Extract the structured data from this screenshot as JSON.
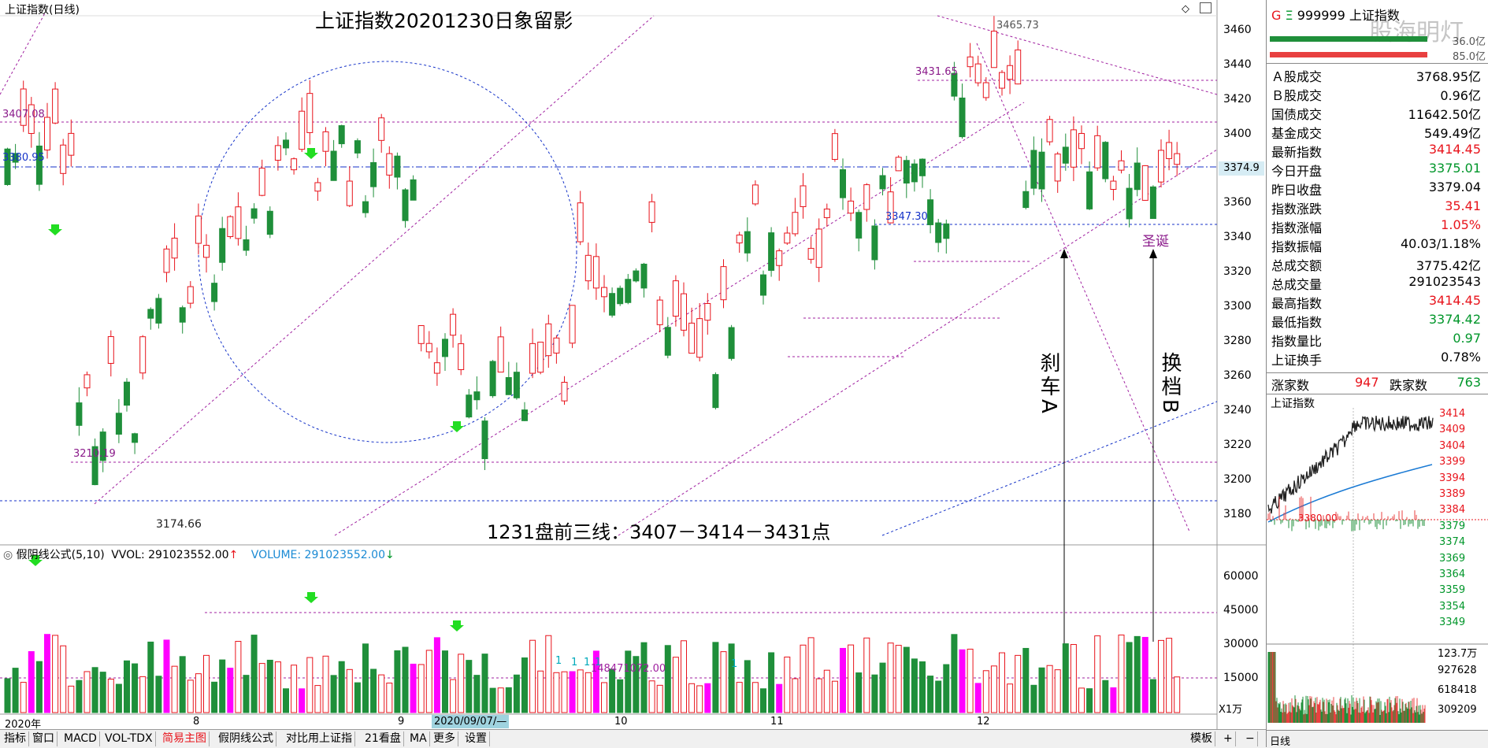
{
  "chart_header": {
    "title_label": "上证指数(日线)",
    "main_title": "上证指数20201230日象留影",
    "icons": [
      "diamond-icon",
      "window-icon"
    ]
  },
  "price_axis": {
    "ticks": [
      "3460",
      "3440",
      "3420",
      "3400",
      "3380",
      "3360",
      "3340",
      "3320",
      "3300",
      "3280",
      "3260",
      "3240",
      "3220",
      "3200",
      "3180"
    ],
    "current_price_label": "3374.9"
  },
  "price_annotations": {
    "high": "3465.73",
    "level_3431": "3431.65",
    "level_3407": "3407.08",
    "level_3380": "3380.95",
    "level_3347": "3347.30",
    "level_3210": "3210.19",
    "low": "3174.66",
    "christmas": "圣诞"
  },
  "text_annotations": {
    "bottom_note": "1231盘前三线：3407－3414－3431点",
    "brake_a": "刹车A",
    "shift_b": "换档B"
  },
  "volume_header": {
    "indicator": "假阴线公式(5,10)",
    "vvol_label": "VVOL: 291023552.00",
    "vvol_arrow": "↑",
    "volume_label": "VOLUME: 291023552.00",
    "volume_arrow": "↓",
    "vol_mid_label": "148471072.00",
    "marker_one": "1"
  },
  "volume_axis": {
    "ticks": [
      "60000",
      "45000",
      "30000",
      "15000"
    ],
    "unit": "X1万"
  },
  "time_axis": {
    "labels": [
      "2020年",
      "8",
      "9",
      "10",
      "11",
      "12"
    ],
    "date_box": "2020/09/07/—"
  },
  "bottom_tabs": {
    "items": [
      "指标",
      "窗口",
      "MACD",
      "VOL-TDX",
      "简易主图",
      "假阴线公式",
      "对比用上证指",
      "21看盘",
      "MA",
      "更多",
      "设置"
    ],
    "active": "简易主图",
    "right_items": [
      "模板",
      "+",
      "−"
    ]
  },
  "right_panel": {
    "code_prefix": "G",
    "code_mark": "Ξ",
    "code": "999999",
    "name": "上证指数",
    "watermark": "股海明灯",
    "small_val1": "36.0亿",
    "small_val2": "85.0亿",
    "rows": [
      {
        "label": "Ａ股成交",
        "value": "3768.95亿",
        "color": "dk"
      },
      {
        "label": "Ｂ股成交",
        "value": "0.96亿",
        "color": "dk"
      },
      {
        "label": "国债成交",
        "value": "11642.50亿",
        "color": "dk"
      },
      {
        "label": "基金成交",
        "value": "549.49亿",
        "color": "dk"
      },
      {
        "label": "最新指数",
        "value": "3414.45",
        "color": "red"
      },
      {
        "label": "今日开盘",
        "value": "3375.01",
        "color": "green"
      },
      {
        "label": "昨日收盘",
        "value": "3379.04",
        "color": "dk"
      },
      {
        "label": "指数涨跌",
        "value": "35.41",
        "color": "red"
      },
      {
        "label": "指数涨幅",
        "value": "1.05%",
        "color": "red"
      },
      {
        "label": "指数振幅",
        "value": "40.03/1.18%",
        "color": "dk"
      },
      {
        "label": "总成交额",
        "value": "3775.42亿",
        "color": "dk"
      },
      {
        "label": "总成交量",
        "value": "291023543",
        "color": "dk"
      },
      {
        "label": "最高指数",
        "value": "3414.45",
        "color": "red"
      },
      {
        "label": "最低指数",
        "value": "3374.42",
        "color": "green"
      },
      {
        "label": "指数量比",
        "value": "0.97",
        "color": "green"
      },
      {
        "label": "上证换手",
        "value": "0.78%",
        "color": "dk"
      }
    ],
    "advance_label": "涨家数",
    "advance_value": "947",
    "decline_label": "跌家数",
    "decline_value": "763",
    "mini_title": "上证指数",
    "mini_price_ticks": [
      "3414",
      "3409",
      "3404",
      "3399",
      "3394",
      "3389",
      "3384",
      "3379",
      "3374",
      "3369",
      "3364",
      "3359",
      "3354",
      "3349"
    ],
    "mini_vol_ticks": [
      "123.7万",
      "927628",
      "618418",
      "309209"
    ],
    "mini_ref_label": "3380.00",
    "bottom_label": "日线"
  }
}
